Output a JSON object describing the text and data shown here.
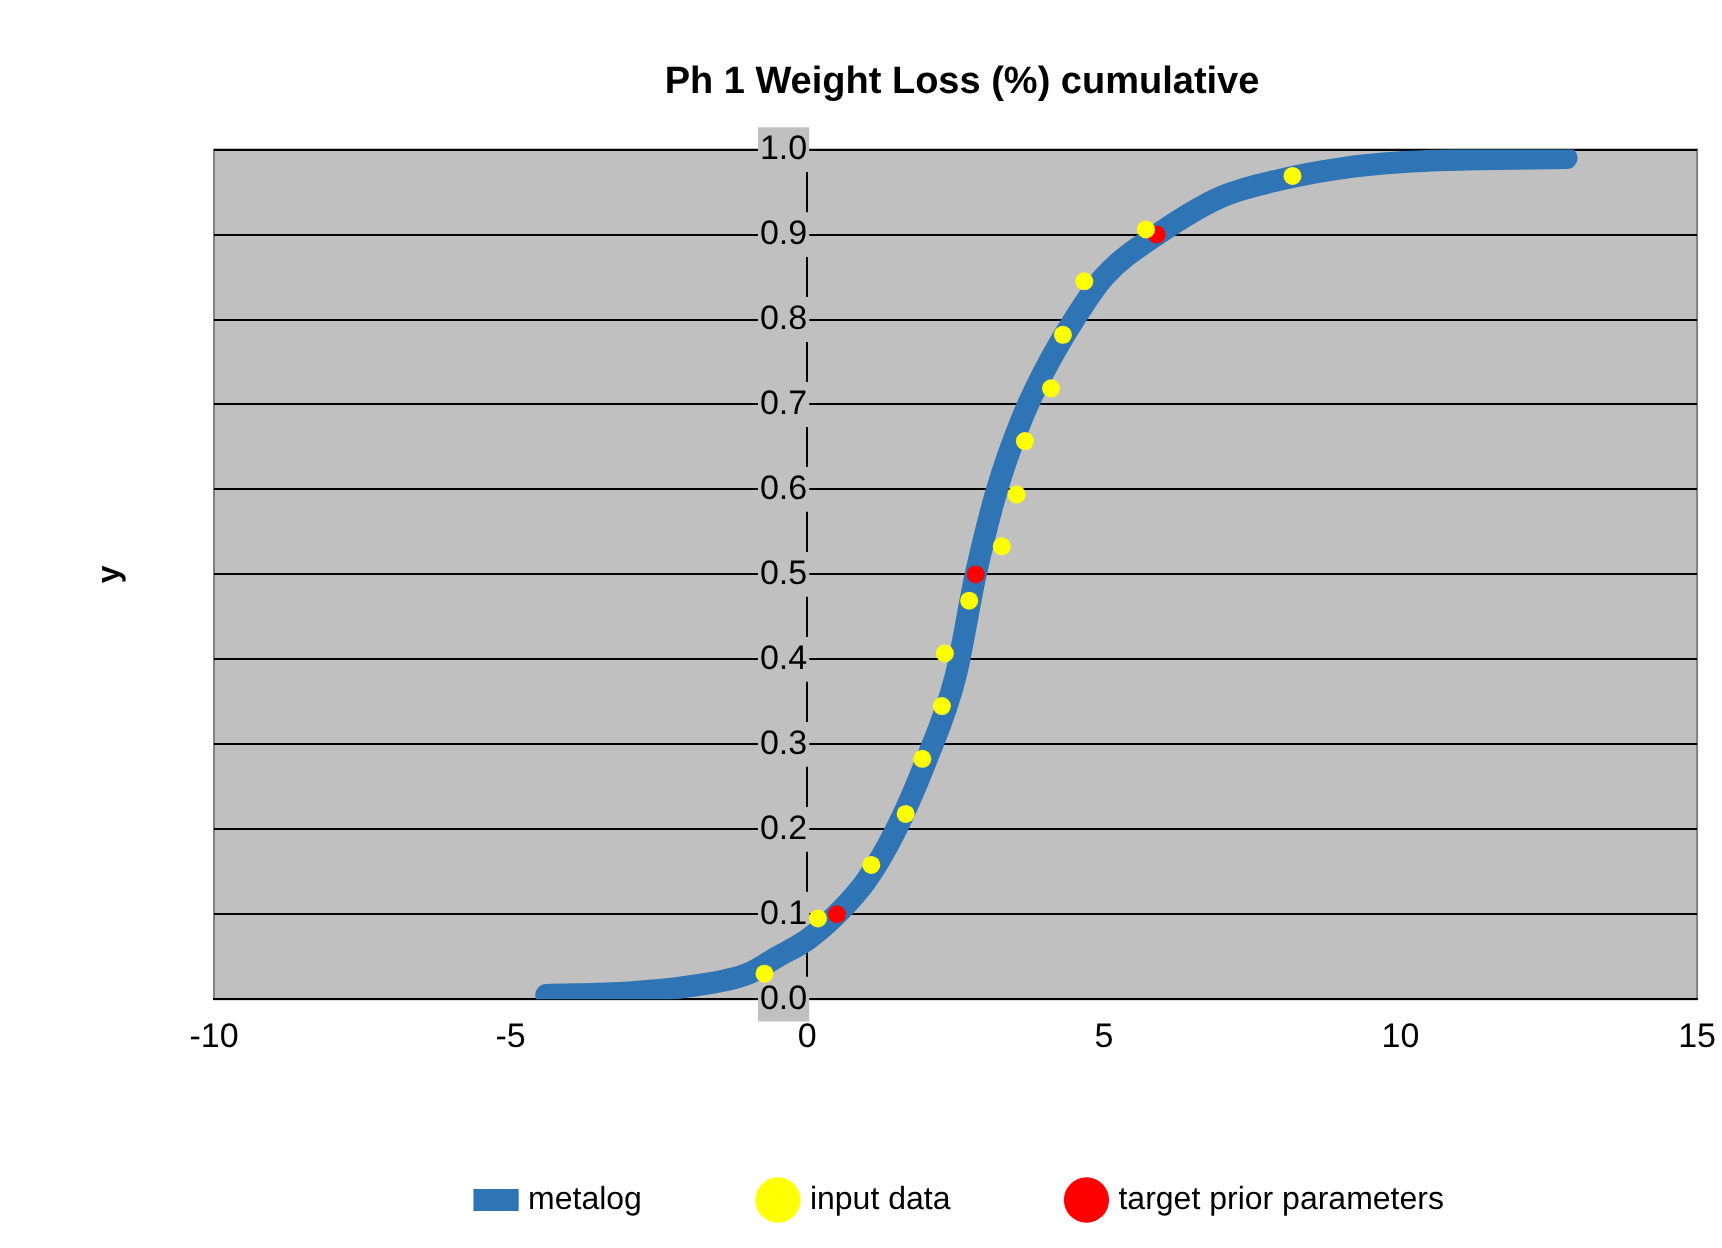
{
  "chart_data": {
    "type": "line",
    "title": "Ph 1 Weight Loss (%) cumulative",
    "ylabel": "y",
    "xlim": [
      -10,
      15
    ],
    "xticks": [
      -10,
      -5,
      0,
      5,
      10,
      15
    ],
    "ylim": [
      0,
      1
    ],
    "yticks": [
      {
        "value": 0,
        "label": "0.0"
      },
      0.1,
      0.2,
      0.3,
      0.4,
      0.5,
      0.6,
      0.7,
      0.8,
      0.9,
      {
        "value": 1,
        "label": "1.0"
      }
    ],
    "grid": "y",
    "legend": "bottom",
    "series": [
      {
        "name": "metalog",
        "color": "#2f74b5",
        "marker": "none",
        "x": [
          -4.4,
          -3,
          -2,
          -1,
          -0.5,
          0,
          0.5,
          1,
          1.5,
          2,
          2.5,
          2.84,
          3.2,
          3.6,
          4,
          4.5,
          5,
          5.9,
          7,
          8,
          9,
          10,
          11,
          12.8
        ],
        "values": [
          0.005,
          0.008,
          0.015,
          0.03,
          0.05,
          0.07,
          0.1,
          0.14,
          0.2,
          0.28,
          0.38,
          0.5,
          0.6,
          0.68,
          0.74,
          0.8,
          0.85,
          0.9,
          0.945,
          0.965,
          0.978,
          0.985,
          0.988,
          0.99
        ]
      },
      {
        "name": "input data",
        "type": "scatter",
        "color": "#ffff00",
        "marker": "circle",
        "x": [
          -0.72,
          0.18,
          1.08,
          1.66,
          1.94,
          2.27,
          2.32,
          2.73,
          3.28,
          3.53,
          3.67,
          4.11,
          4.31,
          4.67,
          5.71,
          8.18
        ],
        "values": [
          0.03,
          0.095,
          0.158,
          0.218,
          0.283,
          0.345,
          0.407,
          0.469,
          0.533,
          0.594,
          0.657,
          0.719,
          0.782,
          0.845,
          0.906,
          0.969
        ]
      },
      {
        "name": "target prior parameters",
        "type": "scatter",
        "color": "#ff0000",
        "marker": "circle",
        "x": [
          0.5,
          2.84,
          5.89
        ],
        "values": [
          0.1,
          0.5,
          0.9
        ]
      }
    ]
  }
}
